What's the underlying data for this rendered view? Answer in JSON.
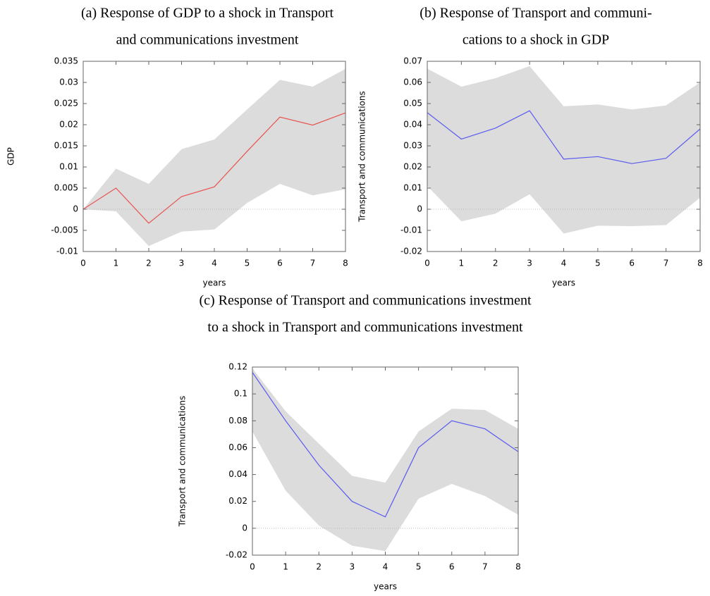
{
  "chart_data": [
    {
      "type": "line",
      "title": [
        "(a) Response of GDP to a shock in Transport",
        "and communications investment"
      ],
      "xlabel": "years",
      "ylabel": "GDP",
      "x": [
        0,
        1,
        2,
        3,
        4,
        5,
        6,
        7,
        8
      ],
      "xlim": [
        0,
        8
      ],
      "xticks": [
        0,
        1,
        2,
        3,
        4,
        5,
        6,
        7,
        8
      ],
      "ylim": [
        -0.01,
        0.035
      ],
      "yticks": [
        -0.01,
        -0.005,
        0,
        0.005,
        0.01,
        0.015,
        0.02,
        0.025,
        0.03,
        0.035
      ],
      "zero_line": true,
      "band": {
        "color": "#dcdcdc",
        "upper": [
          0,
          0.0096,
          0.006,
          0.0142,
          0.0165,
          0.0236,
          0.0306,
          0.029,
          0.0332
        ],
        "lower": [
          0,
          -0.0005,
          -0.0087,
          -0.0053,
          -0.0048,
          0.0015,
          0.006,
          0.0033,
          0.0047
        ]
      },
      "series": [
        {
          "color": "#e8524f",
          "values": [
            0,
            0.005,
            -0.0033,
            0.003,
            0.0053,
            0.0137,
            0.0218,
            0.0199,
            0.0228
          ]
        }
      ]
    },
    {
      "type": "line",
      "title": [
        "(b) Response of Transport and communi-",
        "cations to a shock in GDP"
      ],
      "xlabel": "years",
      "ylabel": "Transport and communications",
      "x": [
        0,
        1,
        2,
        3,
        4,
        5,
        6,
        7,
        8
      ],
      "xlim": [
        0,
        8
      ],
      "xticks": [
        0,
        1,
        2,
        3,
        4,
        5,
        6,
        7,
        8
      ],
      "ylim": [
        -0.02,
        0.07
      ],
      "yticks": [
        -0.02,
        -0.01,
        0,
        0.01,
        0.02,
        0.03,
        0.04,
        0.05,
        0.06,
        0.07
      ],
      "zero_line": true,
      "band": {
        "color": "#dcdcdc",
        "upper": [
          0.0665,
          0.058,
          0.062,
          0.0677,
          0.0487,
          0.0496,
          0.0472,
          0.0491,
          0.06
        ],
        "lower": [
          0.011,
          -0.0057,
          -0.0021,
          0.0071,
          -0.0115,
          -0.0078,
          -0.008,
          -0.0075,
          0.0055
        ]
      },
      "series": [
        {
          "color": "#5b5bf0",
          "values": [
            0.0457,
            0.0332,
            0.0384,
            0.0466,
            0.0237,
            0.0249,
            0.0216,
            0.0241,
            0.038
          ]
        }
      ]
    },
    {
      "type": "line",
      "title": [
        "(c) Response of Transport and communications investment",
        "to a shock in Transport and communications investment"
      ],
      "xlabel": "years",
      "ylabel": "Transport and communications",
      "x": [
        0,
        1,
        2,
        3,
        4,
        5,
        6,
        7,
        8
      ],
      "xlim": [
        0,
        8
      ],
      "xticks": [
        0,
        1,
        2,
        3,
        4,
        5,
        6,
        7,
        8
      ],
      "ylim": [
        -0.02,
        0.12
      ],
      "yticks": [
        -0.02,
        0,
        0.02,
        0.04,
        0.06,
        0.08,
        0.1,
        0.12
      ],
      "zero_line": true,
      "band": {
        "color": "#dcdcdc",
        "upper": [
          0.119,
          0.087,
          0.063,
          0.039,
          0.034,
          0.072,
          0.089,
          0.088,
          0.074
        ],
        "lower": [
          0.072,
          0.028,
          0.002,
          -0.013,
          -0.017,
          0.022,
          0.033,
          0.024,
          0.01
        ]
      },
      "series": [
        {
          "color": "#5b5bf0",
          "values": [
            0.116,
            0.08,
            0.047,
            0.02,
            0.0085,
            0.06,
            0.08,
            0.074,
            0.057
          ]
        }
      ]
    }
  ]
}
